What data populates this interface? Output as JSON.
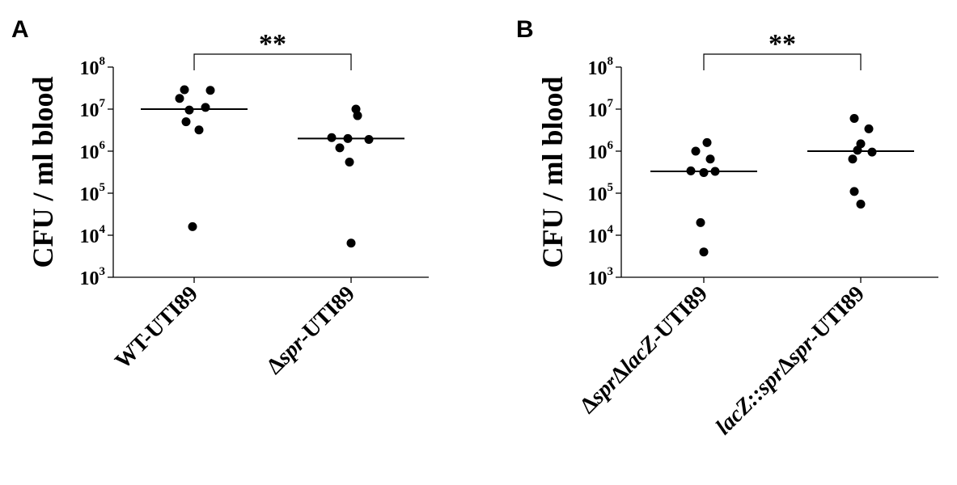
{
  "chart_data": [
    {
      "type": "scatter",
      "panel_label": "A",
      "ylabel": "CFU / ml blood",
      "yscale": "log",
      "ylim": [
        1000,
        100000000
      ],
      "yticks": [
        {
          "base": "10",
          "exp": "3"
        },
        {
          "base": "10",
          "exp": "4"
        },
        {
          "base": "10",
          "exp": "5"
        },
        {
          "base": "10",
          "exp": "6"
        },
        {
          "base": "10",
          "exp": "7"
        },
        {
          "base": "10",
          "exp": "8"
        }
      ],
      "categories": [
        [
          {
            "text": "WT-UTI89",
            "italic": false
          }
        ],
        [
          {
            "text": "Δ",
            "italic": false
          },
          {
            "text": "spr",
            "italic": true
          },
          {
            "text": "-UTI89",
            "italic": false
          }
        ]
      ],
      "groups": [
        {
          "values": [
            29000000,
            28000000,
            18000000,
            11000000,
            9500000,
            5000000,
            3200000,
            16000
          ],
          "median": 10000000
        },
        {
          "values": [
            10000000,
            7000000,
            2100000,
            2000000,
            1900000,
            1200000,
            550000,
            6500
          ],
          "median": 2000000
        }
      ],
      "significance": "**"
    },
    {
      "type": "scatter",
      "panel_label": "B",
      "ylabel": "CFU / ml blood",
      "yscale": "log",
      "ylim": [
        1000,
        100000000
      ],
      "yticks": [
        {
          "base": "10",
          "exp": "3"
        },
        {
          "base": "10",
          "exp": "4"
        },
        {
          "base": "10",
          "exp": "5"
        },
        {
          "base": "10",
          "exp": "6"
        },
        {
          "base": "10",
          "exp": "7"
        },
        {
          "base": "10",
          "exp": "8"
        }
      ],
      "categories": [
        [
          {
            "text": "Δ",
            "italic": false
          },
          {
            "text": "spr",
            "italic": true
          },
          {
            "text": "Δ",
            "italic": false
          },
          {
            "text": "lacZ",
            "italic": true
          },
          {
            "text": "-UTI89",
            "italic": false
          }
        ],
        [
          {
            "text": "lacZ::spr",
            "italic": true
          },
          {
            "text": "Δ",
            "italic": false
          },
          {
            "text": "spr",
            "italic": true
          },
          {
            "text": "-UTI89",
            "italic": false
          }
        ]
      ],
      "groups": [
        {
          "values": [
            1600000,
            1000000,
            650000,
            340000,
            330000,
            310000,
            20000,
            4000
          ],
          "median": 330000
        },
        {
          "values": [
            6000000,
            3400000,
            1500000,
            1050000,
            950000,
            650000,
            110000,
            55000
          ],
          "median": 1000000
        }
      ],
      "significance": "**"
    }
  ]
}
